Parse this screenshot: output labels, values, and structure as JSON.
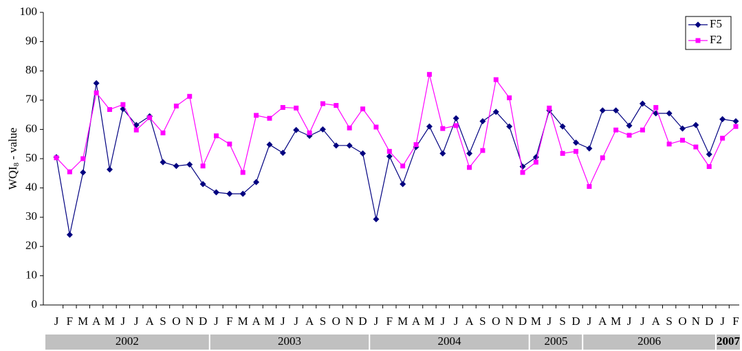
{
  "chart_data": {
    "type": "line",
    "y_label": [
      "WQI",
      "8",
      " - value"
    ],
    "groups": [
      {
        "label": "2002",
        "categories": [
          "J",
          "F",
          "M",
          "A",
          "M",
          "J",
          "J",
          "A",
          "S",
          "O",
          "N",
          "D"
        ]
      },
      {
        "label": "2003",
        "categories": [
          "J",
          "F",
          "M",
          "A",
          "M",
          "J",
          "J",
          "A",
          "S",
          "O",
          "N",
          "D"
        ]
      },
      {
        "label": "2004",
        "categories": [
          "J",
          "F",
          "M",
          "A",
          "M",
          "J",
          "J",
          "A",
          "S",
          "O",
          "N",
          "D"
        ]
      },
      {
        "label": "2005",
        "categories": [
          "M",
          "J",
          "S",
          "D"
        ]
      },
      {
        "label": "2006",
        "categories": [
          "J",
          "A",
          "M",
          "J",
          "J",
          "A",
          "S",
          "O",
          "N",
          "D"
        ]
      },
      {
        "label": "2007",
        "categories": [
          "J",
          "F"
        ]
      }
    ],
    "series": [
      {
        "name": "F5",
        "color": "#000080",
        "marker": "diamond",
        "values": [
          50.5,
          24,
          45.3,
          75.8,
          46.3,
          67,
          61.5,
          64.5,
          48.8,
          47.5,
          48,
          41.3,
          38.5,
          38,
          38,
          42,
          54.8,
          52,
          59.8,
          57.8,
          60,
          54.5,
          54.5,
          51.8,
          29.3,
          50.8,
          41.3,
          54,
          61,
          51.8,
          63.8,
          51.8,
          62.8,
          66,
          61,
          47.3,
          50.5,
          66.5,
          61,
          55.5,
          53.5,
          66.5,
          66.5,
          61.3,
          68.8,
          65.5,
          65.5,
          60.3,
          61.5,
          51.5,
          63.5,
          62.8
        ]
      },
      {
        "name": "F2",
        "color": "#ff00ff",
        "marker": "square",
        "values": [
          50.3,
          45.5,
          50,
          72.5,
          66.8,
          68.5,
          59.8,
          64,
          58.8,
          68,
          71.3,
          47.5,
          57.8,
          55,
          45.3,
          64.8,
          63.8,
          67.5,
          67.3,
          58.8,
          68.8,
          68.2,
          60.5,
          67,
          60.8,
          52.5,
          47.5,
          54.8,
          78.8,
          60.3,
          61.3,
          47,
          52.8,
          77,
          70.8,
          45.3,
          48.8,
          67.3,
          51.8,
          52.5,
          40.5,
          50.3,
          59.8,
          58,
          59.8,
          67.5,
          55,
          56.3,
          54,
          47.3,
          57,
          61
        ]
      }
    ],
    "ylim": [
      0,
      100
    ],
    "yticks": [
      0,
      10,
      20,
      30,
      40,
      50,
      60,
      70,
      80,
      90,
      100
    ],
    "grid": false,
    "legend": "top-right"
  }
}
